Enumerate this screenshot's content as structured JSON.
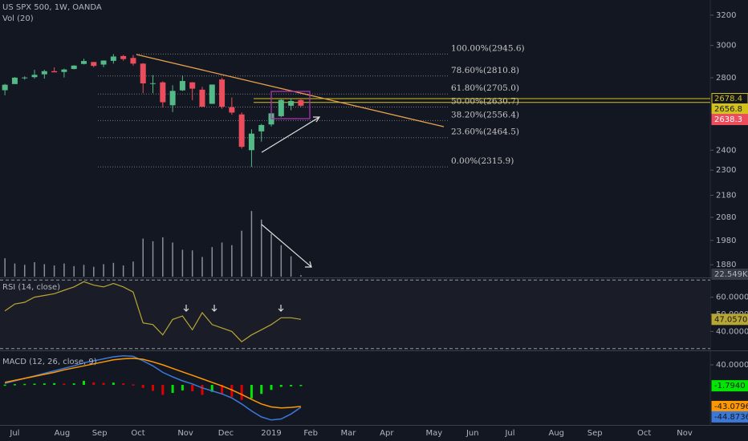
{
  "chart_data": [
    {
      "type": "candlestick",
      "title": "US SPX 500, 1W, OANDA",
      "log_scale": true,
      "grid": false,
      "xlim": [
        -0.5,
        71.5
      ],
      "xticks": [
        {
          "value": 1,
          "label": "Jul"
        },
        {
          "value": 5.8,
          "label": "Aug"
        },
        {
          "value": 9.6,
          "label": "Sep"
        },
        {
          "value": 13.5,
          "label": "Oct"
        },
        {
          "value": 18.3,
          "label": "Nov"
        },
        {
          "value": 22.4,
          "label": "Dec"
        },
        {
          "value": 27,
          "label": "2019"
        },
        {
          "value": 31,
          "label": "Feb"
        },
        {
          "value": 34.8,
          "label": "Mar"
        },
        {
          "value": 38.7,
          "label": "Apr"
        },
        {
          "value": 43.5,
          "label": "May"
        },
        {
          "value": 47.4,
          "label": "Jun"
        },
        {
          "value": 51.2,
          "label": "Jul"
        },
        {
          "value": 55.9,
          "label": "Aug"
        },
        {
          "value": 59.8,
          "label": "Sep"
        },
        {
          "value": 64.8,
          "label": "Oct"
        },
        {
          "value": 68.9,
          "label": "Nov"
        }
      ],
      "ylim": [
        1833,
        3305
      ],
      "yticks": [
        3200,
        3000,
        2800,
        2400,
        2300,
        2180,
        2080,
        1980,
        1880
      ],
      "up_color": "#53b987",
      "down_color": "#eb4d5c",
      "open": [
        2727,
        2763,
        2798,
        2804,
        2821,
        2840,
        2835,
        2853,
        2884,
        2896,
        2880,
        2903,
        2933,
        2921,
        2886,
        2767,
        2773,
        2641,
        2726,
        2773,
        2730,
        2649,
        2790,
        2630,
        2590,
        2400,
        2498,
        2535,
        2580,
        2638,
        2670
      ],
      "high": [
        2764,
        2804,
        2809,
        2848,
        2848,
        2863,
        2855,
        2876,
        2916,
        2896,
        2906,
        2945.6,
        2940,
        2940,
        2889,
        2816,
        2779,
        2756,
        2815,
        2775,
        2747,
        2760,
        2800,
        2685,
        2601,
        2509,
        2538,
        2597,
        2675,
        2681,
        2680
      ],
      "low": [
        2698,
        2764,
        2789,
        2795,
        2795,
        2834,
        2802,
        2851,
        2881,
        2864,
        2864,
        2886,
        2904,
        2874,
        2710,
        2710,
        2628,
        2603,
        2722,
        2670,
        2631,
        2649,
        2621,
        2588,
        2408,
        2315.9,
        2444,
        2524,
        2574,
        2613,
        2630
      ],
      "close": [
        2759,
        2801,
        2802,
        2818,
        2840,
        2833,
        2850,
        2874,
        2902,
        2872,
        2905,
        2930,
        2914,
        2886,
        2767,
        2768,
        2658,
        2723,
        2781,
        2736,
        2633,
        2760,
        2633,
        2600,
        2417,
        2486,
        2532,
        2596,
        2671,
        2665,
        2638.3
      ],
      "fib_levels": [
        {
          "value": 2945.6,
          "label": "100.00%(2945.6)"
        },
        {
          "value": 2810.8,
          "label": "78.60%(2810.8)"
        },
        {
          "value": 2705,
          "label": "61.80%(2705.0)"
        },
        {
          "value": 2630.7,
          "label": "50.00%(2630.7)"
        },
        {
          "value": 2556.4,
          "label": "38.20%(2556.4)"
        },
        {
          "value": 2464.5,
          "label": "23.60%(2464.5)"
        },
        {
          "value": 2315.9,
          "label": "0.00%(2315.9)"
        }
      ],
      "price_tags": [
        {
          "value": 2678.4,
          "color": "#d4c21a",
          "text_color": "#d4c21a",
          "fill": "#131722",
          "line": true
        },
        {
          "value": 2656.8,
          "color": "#d4c21a",
          "text_color": "#131722",
          "fill": "#d4c21a",
          "line": true
        },
        {
          "value": 2638.3,
          "color": "#eb4d5c",
          "text_color": "#ffffff",
          "fill": "#eb4d5c",
          "line": false
        }
      ]
    },
    {
      "type": "bar",
      "title": "Vol (20)",
      "ylim": [
        0,
        1100000
      ],
      "color": "#8a8e99",
      "values": [
        280000,
        200000,
        180000,
        220000,
        190000,
        170000,
        200000,
        160000,
        180000,
        150000,
        190000,
        210000,
        170000,
        230000,
        580000,
        540000,
        600000,
        520000,
        410000,
        400000,
        300000,
        450000,
        520000,
        480000,
        700000,
        1000000,
        870000,
        650000,
        480000,
        310000,
        22549
      ],
      "value_labels": [
        null,
        null,
        null,
        null,
        null,
        null,
        null,
        null,
        null,
        null,
        null,
        null,
        null,
        null,
        null,
        null,
        null,
        null,
        null,
        null,
        null,
        null,
        null,
        null,
        null,
        null,
        null,
        null,
        null,
        null,
        "22.549K"
      ]
    },
    {
      "type": "line",
      "title": "RSI (14, close)",
      "ylim": [
        28.5,
        71.5
      ],
      "bands": [
        30,
        70
      ],
      "color": "#b7a632",
      "yticks": [
        {
          "value": 60,
          "label": "60.0000"
        },
        {
          "value": 50,
          "label": "50.0000"
        },
        {
          "value": 40,
          "label": "40.0000"
        }
      ],
      "values": [
        52,
        56,
        57,
        60,
        61,
        62,
        64,
        66,
        69,
        67,
        66,
        68,
        66,
        63,
        45,
        44,
        38,
        47,
        49,
        41,
        51,
        44,
        42,
        40,
        34,
        38,
        41,
        44,
        48,
        48,
        47.057
      ],
      "value_labels": [
        null,
        null,
        null,
        null,
        null,
        null,
        null,
        null,
        null,
        null,
        null,
        null,
        null,
        null,
        null,
        null,
        null,
        null,
        null,
        null,
        null,
        null,
        null,
        null,
        null,
        null,
        null,
        null,
        null,
        null,
        "47.0570"
      ]
    },
    {
      "type": "macd",
      "title": "MACD (12, 26, close, 9)",
      "ylim": [
        -108.8,
        64
      ],
      "yticks": [
        {
          "value": 40,
          "label": "40.0000"
        }
      ],
      "histogram": {
        "up_color": "#00e600",
        "down_color": "#e00000",
        "values": [
          0.5,
          1.5,
          2,
          2.5,
          3,
          3.5,
          2.5,
          3,
          8,
          5,
          4,
          4.5,
          3,
          1,
          -6,
          -12,
          -20,
          -16,
          -11,
          -13,
          -20,
          -14,
          -18,
          -24,
          -30,
          -27,
          -18,
          -10,
          -4,
          -3,
          -1.794
        ],
        "value_labels": [
          null,
          null,
          null,
          null,
          null,
          null,
          null,
          null,
          null,
          null,
          null,
          null,
          null,
          null,
          null,
          null,
          null,
          null,
          null,
          null,
          null,
          null,
          null,
          null,
          null,
          null,
          null,
          null,
          null,
          null,
          "-1.7940"
        ]
      },
      "series": [
        {
          "color": "#3c78d8",
          "values": [
            3,
            8,
            13,
            18,
            23,
            28,
            33,
            38,
            44,
            48,
            52,
            56,
            58,
            57,
            48,
            38,
            25,
            16,
            8,
            2,
            -6,
            -12,
            -18,
            -26,
            -38,
            -52,
            -64,
            -70,
            -68,
            -58,
            -44.8736
          ],
          "value_labels": [
            null,
            null,
            null,
            null,
            null,
            null,
            null,
            null,
            null,
            null,
            null,
            null,
            null,
            null,
            null,
            null,
            null,
            null,
            null,
            null,
            null,
            null,
            null,
            null,
            null,
            null,
            null,
            null,
            null,
            null,
            "-44.8736"
          ]
        },
        {
          "color": "#ff9800",
          "values": [
            5,
            9,
            13,
            17,
            21,
            25,
            30,
            34,
            38,
            42,
            46,
            50,
            52,
            53,
            51,
            46,
            40,
            33,
            26,
            19,
            12,
            5,
            -2,
            -10,
            -19,
            -29,
            -38,
            -44,
            -46,
            -45,
            -43.0796
          ],
          "value_labels": [
            null,
            null,
            null,
            null,
            null,
            null,
            null,
            null,
            null,
            null,
            null,
            null,
            null,
            null,
            null,
            null,
            null,
            null,
            null,
            null,
            null,
            null,
            null,
            null,
            null,
            null,
            null,
            null,
            null,
            null,
            "-43.0796"
          ]
        }
      ]
    }
  ]
}
